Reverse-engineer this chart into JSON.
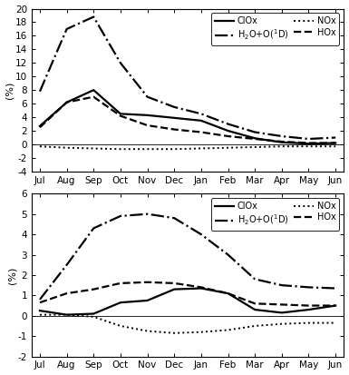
{
  "months": [
    "Jul",
    "Aug",
    "Sep",
    "Oct",
    "Nov",
    "Dec",
    "Jan",
    "Feb",
    "Mar",
    "Apr",
    "May",
    "Jun"
  ],
  "top": {
    "ClOx": [
      2.7,
      6.2,
      8.0,
      4.5,
      4.3,
      3.9,
      3.5,
      2.0,
      0.9,
      0.3,
      0.1,
      0.2
    ],
    "NOx": [
      -0.3,
      -0.5,
      -0.6,
      -0.7,
      -0.7,
      -0.7,
      -0.6,
      -0.5,
      -0.4,
      -0.3,
      -0.3,
      -0.3
    ],
    "H2O_O1D": [
      7.8,
      17.0,
      18.8,
      12.0,
      7.0,
      5.5,
      4.5,
      3.0,
      1.8,
      1.2,
      0.8,
      1.0
    ],
    "HOx": [
      2.5,
      6.2,
      7.0,
      4.2,
      2.8,
      2.2,
      1.8,
      1.2,
      0.8,
      0.4,
      0.2,
      0.2
    ],
    "ylim": [
      -4,
      20
    ],
    "yticks": [
      -4,
      -2,
      0,
      2,
      4,
      6,
      8,
      10,
      12,
      14,
      16,
      18,
      20
    ]
  },
  "bottom": {
    "ClOx": [
      0.25,
      0.05,
      0.1,
      0.65,
      0.75,
      1.3,
      1.35,
      1.1,
      0.3,
      0.15,
      0.3,
      0.5
    ],
    "NOx": [
      0.05,
      0.05,
      -0.05,
      -0.5,
      -0.75,
      -0.85,
      -0.8,
      -0.7,
      -0.5,
      -0.4,
      -0.35,
      -0.35
    ],
    "H2O_O1D": [
      0.8,
      2.5,
      4.3,
      4.9,
      5.0,
      4.8,
      4.0,
      3.0,
      1.8,
      1.5,
      1.4,
      1.35
    ],
    "HOx": [
      0.65,
      1.1,
      1.3,
      1.6,
      1.65,
      1.6,
      1.4,
      1.1,
      0.6,
      0.55,
      0.5,
      0.5
    ],
    "ylim": [
      -2,
      6
    ],
    "yticks": [
      -2,
      -1,
      0,
      1,
      2,
      3,
      4,
      5,
      6
    ]
  },
  "series_order": [
    "ClOx",
    "NOx",
    "H2O_O1D",
    "HOx"
  ],
  "line_styles": {
    "ClOx": {
      "ls": "-",
      "lw": 1.6,
      "color": "#000000"
    },
    "NOx": {
      "ls": ":",
      "lw": 1.4,
      "color": "#000000"
    },
    "H2O_O1D": {
      "ls": "-.",
      "lw": 1.6,
      "color": "#000000"
    },
    "HOx": {
      "ls": "--",
      "lw": 1.6,
      "color": "#000000"
    }
  },
  "legend_labels": {
    "ClOx": "ClOx",
    "NOx": "NOx",
    "H2O_O1D": "H$_2$O+O($^1$D)",
    "HOx": "HOx"
  },
  "legend_order": [
    0,
    2,
    1,
    3
  ],
  "ylabel": "(%)"
}
